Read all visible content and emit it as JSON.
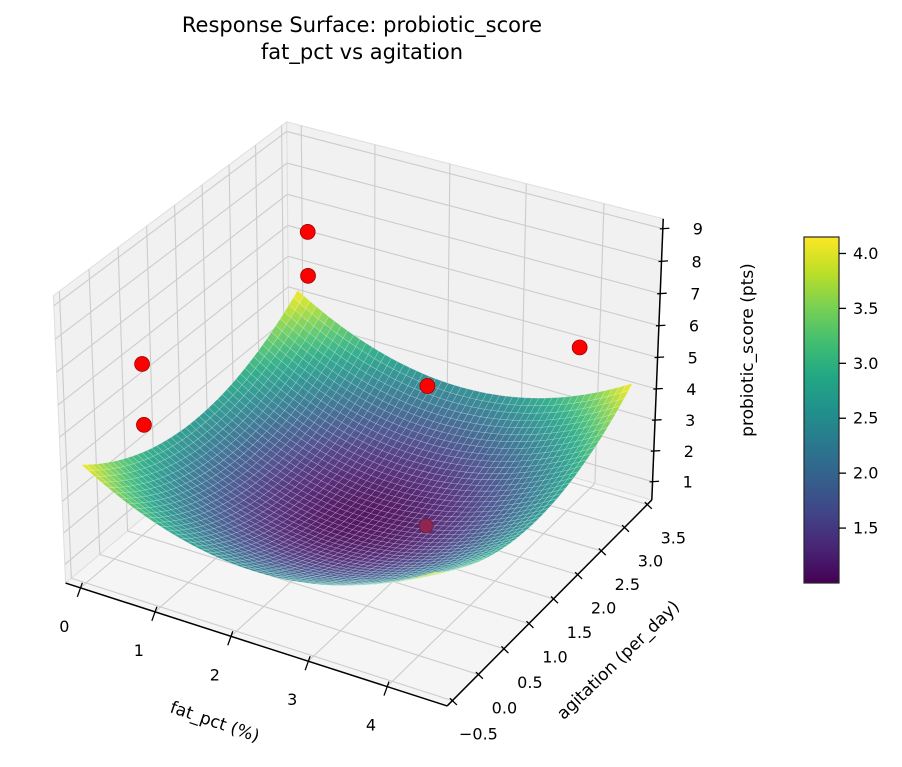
{
  "title": {
    "line1": "Response Surface: probiotic_score",
    "line2": "fat_pct vs agitation"
  },
  "chart_data": {
    "type": "surface3d",
    "title": "Response Surface: probiotic_score\nfat_pct vs agitation",
    "view": {
      "azim": -60,
      "elev": 30,
      "projection": "weak-perspective"
    },
    "x_axis": {
      "label": "fat_pct (%)",
      "ticks": [
        0,
        1,
        2,
        3,
        4
      ],
      "tick_labels": [
        "0",
        "1",
        "2",
        "3",
        "4"
      ],
      "lim": [
        -0.2,
        4.75
      ]
    },
    "y_axis": {
      "label": "agitation (per_day)",
      "ticks": [
        -0.5,
        0.0,
        0.5,
        1.0,
        1.5,
        2.0,
        2.5,
        3.0,
        3.5
      ],
      "tick_labels": [
        "−0.5",
        "0.0",
        "0.5",
        "1.0",
        "1.5",
        "2.0",
        "2.5",
        "3.0",
        "3.5"
      ],
      "lim": [
        -0.6,
        3.6
      ]
    },
    "z_axis": {
      "label": "probiotic_score (pts)",
      "ticks": [
        1,
        2,
        3,
        4,
        5,
        6,
        7,
        8,
        9
      ],
      "tick_labels": [
        "1",
        "2",
        "3",
        "4",
        "5",
        "6",
        "7",
        "8",
        "9"
      ],
      "lim": [
        0.4,
        9.3
      ]
    },
    "surface": {
      "model": "z = z_min + ax*(x-x0)^2 + by*(y-y0)^2",
      "x0": 2.25,
      "y0": 1.5,
      "z_min": 1.0,
      "ax": 0.33,
      "by": 0.37,
      "x_domain": [
        0.0,
        4.5
      ],
      "y_domain": [
        -0.5,
        3.5
      ],
      "mesh": [
        52,
        46
      ],
      "alpha": 0.9
    },
    "colormap": "viridis",
    "viridis_stops": [
      [
        0.0,
        "#440154"
      ],
      [
        0.1,
        "#482475"
      ],
      [
        0.2,
        "#414487"
      ],
      [
        0.3,
        "#355f8d"
      ],
      [
        0.4,
        "#2a788e"
      ],
      [
        0.5,
        "#21918c"
      ],
      [
        0.6,
        "#22a884"
      ],
      [
        0.7,
        "#44bf70"
      ],
      [
        0.8,
        "#7ad151"
      ],
      [
        0.9,
        "#bddf26"
      ],
      [
        1.0,
        "#fde725"
      ]
    ],
    "color_range": [
      1.0,
      4.15
    ],
    "colorbar": {
      "ticks": [
        1.5,
        2.0,
        2.5,
        3.0,
        3.5,
        4.0
      ],
      "tick_labels": [
        "1.5",
        "2.0",
        "2.5",
        "3.0",
        "3.5",
        "4.0"
      ]
    },
    "points": [
      {
        "x": 0.5,
        "y": 3.0,
        "z": 7.0
      },
      {
        "x": 0.5,
        "y": 3.0,
        "z": 5.6
      },
      {
        "x": 0.15,
        "y": 0.4,
        "z": 6.1
      },
      {
        "x": 0.15,
        "y": 0.4,
        "z": 4.2
      },
      {
        "x": 4.1,
        "y": 3.0,
        "z": 5.7
      },
      {
        "x": 3.1,
        "y": 1.5,
        "z": 5.9
      },
      {
        "x": 3.1,
        "y": 1.5,
        "z": 1.5,
        "occluded": true
      }
    ],
    "point_color": "#ff0000",
    "occluded_point_color": "#8d2752"
  },
  "colors": {
    "pane_wall": "#f1f1f1",
    "pane_floor": "#f5f5f5",
    "grid": "#cccccc",
    "pane_edge": "#dedede",
    "axis_line": "#000000",
    "text": "#000000"
  }
}
